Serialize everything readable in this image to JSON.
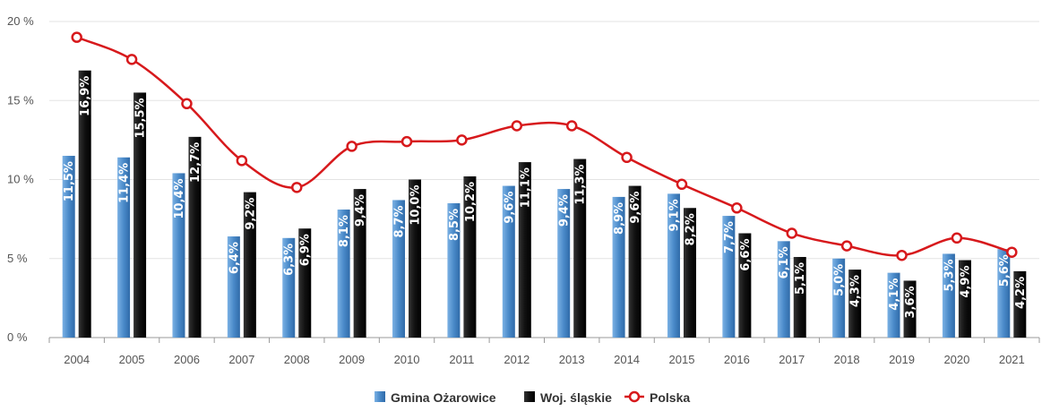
{
  "chart_data": {
    "type": "bar",
    "categories": [
      "2004",
      "2005",
      "2006",
      "2007",
      "2008",
      "2009",
      "2010",
      "2011",
      "2012",
      "2013",
      "2014",
      "2015",
      "2016",
      "2017",
      "2018",
      "2019",
      "2020",
      "2021"
    ],
    "series": [
      {
        "name": "Gmina Ożarowice",
        "type": "bar",
        "color": "#4a8ac9",
        "values": [
          11.5,
          11.4,
          10.4,
          6.4,
          6.3,
          8.1,
          8.7,
          8.5,
          9.6,
          9.4,
          8.9,
          9.1,
          7.7,
          6.1,
          5.0,
          4.1,
          5.3,
          5.6
        ],
        "labels": [
          "11,5%",
          "11,4%",
          "10,4%",
          "6,4%",
          "6,3%",
          "8,1%",
          "8,7%",
          "8,5%",
          "9,6%",
          "9,4%",
          "8,9%",
          "9,1%",
          "7,7%",
          "6,1%",
          "5,0%",
          "4,1%",
          "5,3%",
          "5,6%"
        ]
      },
      {
        "name": "Woj. śląskie",
        "type": "bar",
        "color": "#1a1a1a",
        "values": [
          16.9,
          15.5,
          12.7,
          9.2,
          6.9,
          9.4,
          10.0,
          10.2,
          11.1,
          11.3,
          9.6,
          8.2,
          6.6,
          5.1,
          4.3,
          3.6,
          4.9,
          4.2
        ],
        "labels": [
          "16,9%",
          "15,5%",
          "12,7%",
          "9,2%",
          "6,9%",
          "9,4%",
          "10,0%",
          "10,2%",
          "11,1%",
          "11,3%",
          "9,6%",
          "8,2%",
          "6,6%",
          "5,1%",
          "4,3%",
          "3,6%",
          "4,9%",
          "4,2%"
        ]
      },
      {
        "name": "Polska",
        "type": "line",
        "color": "#d7191c",
        "values": [
          19.0,
          17.6,
          14.8,
          11.2,
          9.5,
          12.1,
          12.4,
          12.5,
          13.4,
          13.4,
          11.4,
          9.7,
          8.2,
          6.6,
          5.8,
          5.2,
          6.3,
          5.4
        ]
      }
    ],
    "yticks": [
      "0 %",
      "5 %",
      "10 %",
      "15 %",
      "20 %"
    ],
    "ytick_values": [
      0,
      5,
      10,
      15,
      20
    ],
    "ylim": [
      0,
      20
    ],
    "grid": true,
    "legend_position": "bottom-center"
  }
}
